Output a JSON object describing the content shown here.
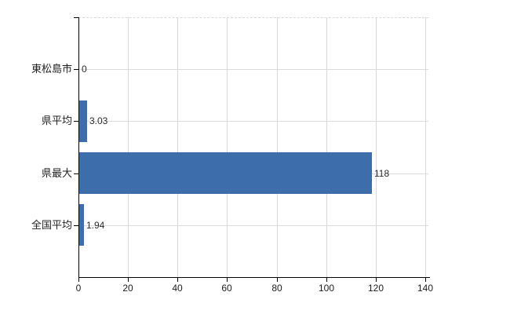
{
  "chart_data": {
    "type": "bar",
    "orientation": "horizontal",
    "title": "",
    "xlabel": "",
    "ylabel": "",
    "categories": [
      "東松島市",
      "県平均",
      "県最大",
      "全国平均"
    ],
    "values": [
      0,
      3.03,
      118,
      1.94
    ],
    "value_labels": [
      "0",
      "3.03",
      "118",
      "1.94"
    ],
    "x_ticks": [
      "0",
      "20",
      "40",
      "60",
      "80",
      "100",
      "120",
      "140"
    ],
    "x_tick_values": [
      0,
      20,
      40,
      60,
      80,
      100,
      120,
      140
    ],
    "xlim": [
      0,
      140
    ],
    "grid": "on",
    "legend": "none",
    "bar_color": "#3e6dab",
    "grid_color": "#d9d9d9",
    "axis_color": "#000000",
    "text_color": "#2b2b2b"
  }
}
